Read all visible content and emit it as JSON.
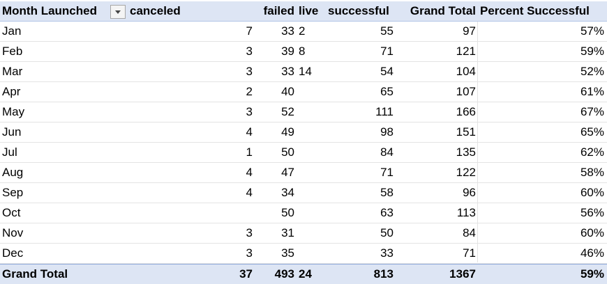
{
  "pivot": {
    "headers": {
      "month": "Month Launched",
      "canceled": "canceled",
      "failed": "failed",
      "live": "live",
      "successful": "successful",
      "grand_total": "Grand Total",
      "percent_successful": "Percent Successful"
    },
    "filter_icon": "chevron-down-icon",
    "rows": [
      {
        "month": "Jan",
        "canceled": "7",
        "failed": "33",
        "live": "2",
        "successful": "55",
        "grand_total": "97",
        "percent": "57%"
      },
      {
        "month": "Feb",
        "canceled": "3",
        "failed": "39",
        "live": "8",
        "successful": "71",
        "grand_total": "121",
        "percent": "59%"
      },
      {
        "month": "Mar",
        "canceled": "3",
        "failed": "33",
        "live": "14",
        "successful": "54",
        "grand_total": "104",
        "percent": "52%"
      },
      {
        "month": "Apr",
        "canceled": "2",
        "failed": "40",
        "live": "",
        "successful": "65",
        "grand_total": "107",
        "percent": "61%"
      },
      {
        "month": "May",
        "canceled": "3",
        "failed": "52",
        "live": "",
        "successful": "111",
        "grand_total": "166",
        "percent": "67%"
      },
      {
        "month": "Jun",
        "canceled": "4",
        "failed": "49",
        "live": "",
        "successful": "98",
        "grand_total": "151",
        "percent": "65%"
      },
      {
        "month": "Jul",
        "canceled": "1",
        "failed": "50",
        "live": "",
        "successful": "84",
        "grand_total": "135",
        "percent": "62%"
      },
      {
        "month": "Aug",
        "canceled": "4",
        "failed": "47",
        "live": "",
        "successful": "71",
        "grand_total": "122",
        "percent": "58%"
      },
      {
        "month": "Sep",
        "canceled": "4",
        "failed": "34",
        "live": "",
        "successful": "58",
        "grand_total": "96",
        "percent": "60%"
      },
      {
        "month": "Oct",
        "canceled": "",
        "failed": "50",
        "live": "",
        "successful": "63",
        "grand_total": "113",
        "percent": "56%"
      },
      {
        "month": "Nov",
        "canceled": "3",
        "failed": "31",
        "live": "",
        "successful": "50",
        "grand_total": "84",
        "percent": "60%"
      },
      {
        "month": "Dec",
        "canceled": "3",
        "failed": "35",
        "live": "",
        "successful": "33",
        "grand_total": "71",
        "percent": "46%"
      }
    ],
    "total": {
      "label": "Grand Total",
      "canceled": "37",
      "failed": "493",
      "live": "24",
      "successful": "813",
      "grand_total": "1367",
      "percent": "59%"
    }
  },
  "colors": {
    "header_fill": "#dde5f4",
    "total_fill": "#dde5f4",
    "gridline": "#e3e3e3"
  }
}
